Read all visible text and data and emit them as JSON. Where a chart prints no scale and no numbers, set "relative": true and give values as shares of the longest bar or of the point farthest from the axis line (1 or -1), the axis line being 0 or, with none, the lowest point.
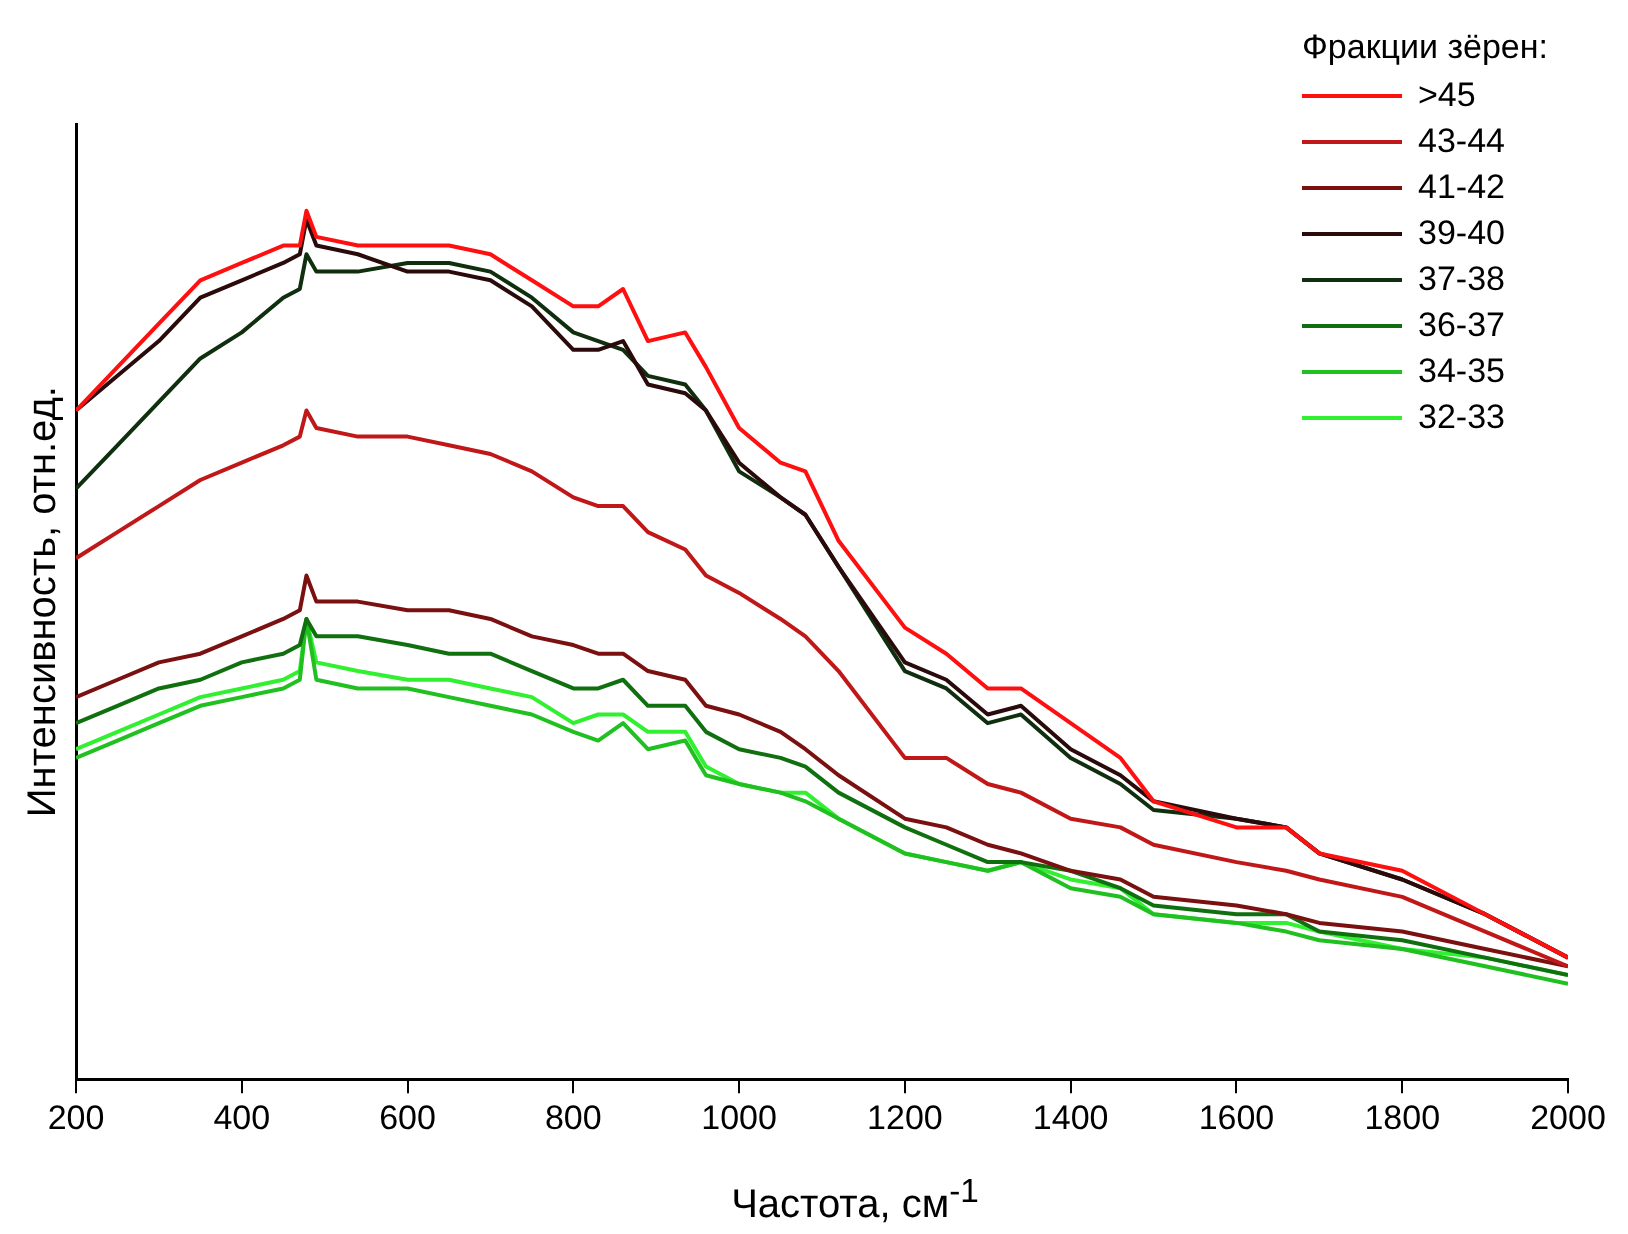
{
  "chart_data": {
    "type": "line",
    "xlabel": "Частота, см$^{-1}$",
    "ylabel": "Интенсивность, отн.ед.",
    "legend_title": "Фракции зёрен:",
    "legend": "top right",
    "relative": true,
    "grid": false,
    "marker": "none",
    "line_style": "solid",
    "xlim": [
      200,
      2000
    ],
    "xticks": [
      200,
      400,
      600,
      800,
      1000,
      1200,
      1400,
      1600,
      1800,
      2000
    ],
    "x": [
      200,
      250,
      300,
      350,
      400,
      450,
      470,
      478,
      490,
      540,
      600,
      650,
      700,
      750,
      800,
      830,
      860,
      890,
      935,
      960,
      1000,
      1050,
      1080,
      1120,
      1200,
      1250,
      1300,
      1340,
      1400,
      1460,
      1500,
      1600,
      1660,
      1700,
      1800,
      1900,
      2000
    ],
    "series": [
      {
        "name": ">45",
        "color": "#ff1010",
        "values": [
          0.77,
          0.82,
          0.87,
          0.92,
          0.94,
          0.96,
          0.96,
          1.0,
          0.97,
          0.96,
          0.96,
          0.96,
          0.95,
          0.92,
          0.89,
          0.89,
          0.91,
          0.85,
          0.86,
          0.82,
          0.75,
          0.71,
          0.7,
          0.62,
          0.52,
          0.49,
          0.45,
          0.45,
          0.41,
          0.37,
          0.32,
          0.29,
          0.29,
          0.26,
          0.24,
          0.19,
          0.14
        ]
      },
      {
        "name": "43-44",
        "color": "#c01818",
        "values": [
          0.6,
          0.63,
          0.66,
          0.69,
          0.71,
          0.73,
          0.74,
          0.77,
          0.75,
          0.74,
          0.74,
          0.73,
          0.72,
          0.7,
          0.67,
          0.66,
          0.66,
          0.63,
          0.61,
          0.58,
          0.56,
          0.53,
          0.51,
          0.47,
          0.37,
          0.37,
          0.34,
          0.33,
          0.3,
          0.29,
          0.27,
          0.25,
          0.24,
          0.23,
          0.21,
          0.17,
          0.13
        ]
      },
      {
        "name": "41-42",
        "color": "#7a1010",
        "values": [
          0.44,
          0.46,
          0.48,
          0.49,
          0.51,
          0.53,
          0.54,
          0.58,
          0.55,
          0.55,
          0.54,
          0.54,
          0.53,
          0.51,
          0.5,
          0.49,
          0.49,
          0.47,
          0.46,
          0.43,
          0.42,
          0.4,
          0.38,
          0.35,
          0.3,
          0.29,
          0.27,
          0.26,
          0.24,
          0.23,
          0.21,
          0.2,
          0.19,
          0.18,
          0.17,
          0.15,
          0.13
        ]
      },
      {
        "name": "39-40",
        "color": "#2a0a0a",
        "values": [
          0.77,
          0.81,
          0.85,
          0.9,
          0.92,
          0.94,
          0.95,
          0.99,
          0.96,
          0.95,
          0.93,
          0.93,
          0.92,
          0.89,
          0.84,
          0.84,
          0.85,
          0.8,
          0.79,
          0.77,
          0.71,
          0.67,
          0.65,
          0.59,
          0.48,
          0.46,
          0.42,
          0.43,
          0.38,
          0.35,
          0.32,
          0.3,
          0.29,
          0.26,
          0.23,
          0.19,
          0.14
        ]
      },
      {
        "name": "37-38",
        "color": "#0f2f0f",
        "values": [
          0.68,
          0.73,
          0.78,
          0.83,
          0.86,
          0.9,
          0.91,
          0.95,
          0.93,
          0.93,
          0.94,
          0.94,
          0.93,
          0.9,
          0.86,
          0.85,
          0.84,
          0.81,
          0.8,
          0.77,
          0.7,
          0.67,
          0.65,
          0.59,
          0.47,
          0.45,
          0.41,
          0.42,
          0.37,
          0.34,
          0.31,
          0.3,
          0.29,
          0.26,
          0.23,
          0.19,
          0.14
        ]
      },
      {
        "name": "36-37",
        "color": "#107010",
        "values": [
          0.41,
          0.43,
          0.45,
          0.46,
          0.48,
          0.49,
          0.5,
          0.53,
          0.51,
          0.51,
          0.5,
          0.49,
          0.49,
          0.47,
          0.45,
          0.45,
          0.46,
          0.43,
          0.43,
          0.4,
          0.38,
          0.37,
          0.36,
          0.33,
          0.29,
          0.27,
          0.25,
          0.25,
          0.24,
          0.22,
          0.2,
          0.19,
          0.19,
          0.17,
          0.16,
          0.14,
          0.12
        ]
      },
      {
        "name": "34-35",
        "color": "#20c020",
        "values": [
          0.37,
          0.39,
          0.41,
          0.43,
          0.44,
          0.45,
          0.46,
          0.53,
          0.46,
          0.45,
          0.45,
          0.44,
          0.43,
          0.42,
          0.4,
          0.39,
          0.41,
          0.38,
          0.39,
          0.35,
          0.34,
          0.33,
          0.32,
          0.3,
          0.26,
          0.25,
          0.24,
          0.25,
          0.22,
          0.21,
          0.19,
          0.18,
          0.17,
          0.16,
          0.15,
          0.13,
          0.11
        ]
      },
      {
        "name": "32-33",
        "color": "#30f030",
        "values": [
          0.38,
          0.4,
          0.42,
          0.44,
          0.45,
          0.46,
          0.47,
          0.53,
          0.48,
          0.47,
          0.46,
          0.46,
          0.45,
          0.44,
          0.41,
          0.42,
          0.42,
          0.4,
          0.4,
          0.36,
          0.34,
          0.33,
          0.33,
          0.3,
          0.26,
          0.25,
          0.24,
          0.25,
          0.23,
          0.22,
          0.19,
          0.18,
          0.18,
          0.17,
          0.15,
          0.14,
          0.12
        ]
      }
    ]
  }
}
